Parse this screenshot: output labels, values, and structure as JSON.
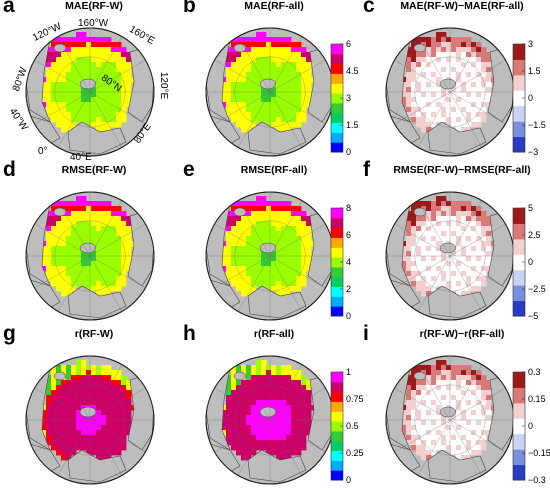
{
  "panels": [
    {
      "letter": "a",
      "title": "MAE(RF-W)",
      "kind": "mae",
      "variant": "w"
    },
    {
      "letter": "b",
      "title": "MAE(RF-all)",
      "kind": "mae",
      "variant": "all"
    },
    {
      "letter": "c",
      "title": "MAE(RF-W)−MAE(RF-all)",
      "kind": "diff",
      "variant": "diff"
    },
    {
      "letter": "d",
      "title": "RMSE(RF-W)",
      "kind": "rmse",
      "variant": "w"
    },
    {
      "letter": "e",
      "title": "RMSE(RF-all)",
      "kind": "rmse",
      "variant": "all"
    },
    {
      "letter": "f",
      "title": "RMSE(RF-W)−RMSE(RF-all)",
      "kind": "diff",
      "variant": "diff"
    },
    {
      "letter": "g",
      "title": "r(RF-W)",
      "kind": "r",
      "variant": "w"
    },
    {
      "letter": "h",
      "title": "r(RF-all)",
      "kind": "r",
      "variant": "all"
    },
    {
      "letter": "i",
      "title": "r(RF-W)−r(RF-all)",
      "kind": "diff",
      "variant": "diff"
    }
  ],
  "geo_labels": {
    "w160": "160°W",
    "w120": "120°W",
    "e160": "160°E",
    "w80": "80°W",
    "n80": "80°N",
    "e120": "120°E",
    "w40": "40°W",
    "e80": "80°E",
    "zero": "0°",
    "e40": "40°E"
  },
  "colorbars": [
    {
      "row": 0,
      "type": "rainbow",
      "ticks": [
        "6",
        "4.5",
        "3",
        "1.5",
        "0"
      ]
    },
    {
      "row": 0,
      "type": "diverging",
      "ticks": [
        "3",
        "1.5",
        "0",
        "−1.5",
        "−3"
      ]
    },
    {
      "row": 1,
      "type": "rainbow",
      "ticks": [
        "8",
        "6",
        "4",
        "2",
        "0"
      ]
    },
    {
      "row": 1,
      "type": "diverging",
      "ticks": [
        "5",
        "2.5",
        "0",
        "−2.5",
        "−5"
      ]
    },
    {
      "row": 2,
      "type": "rainbow",
      "ticks": [
        "1",
        "0.75",
        "0.5",
        "0.25",
        "0"
      ]
    },
    {
      "row": 2,
      "type": "diverging",
      "ticks": [
        "0.3",
        "0.15",
        "0",
        "−0.15",
        "−0.3"
      ]
    }
  ],
  "colors": {
    "land": "#bdbdbd",
    "ocean_bg": "#ffffff",
    "coast": "#444444",
    "rainbow": [
      "#0000ff",
      "#00aaff",
      "#00ffff",
      "#00cc66",
      "#33cc33",
      "#99ff00",
      "#ffff00",
      "#ffaa00",
      "#ff0000",
      "#cc0066",
      "#ff00ff"
    ],
    "diverging": [
      "#2a3bc4",
      "#7a8ee0",
      "#c9d3f3",
      "#ffffff",
      "#f3d0d0",
      "#d97a7a",
      "#9b1b1b"
    ]
  }
}
